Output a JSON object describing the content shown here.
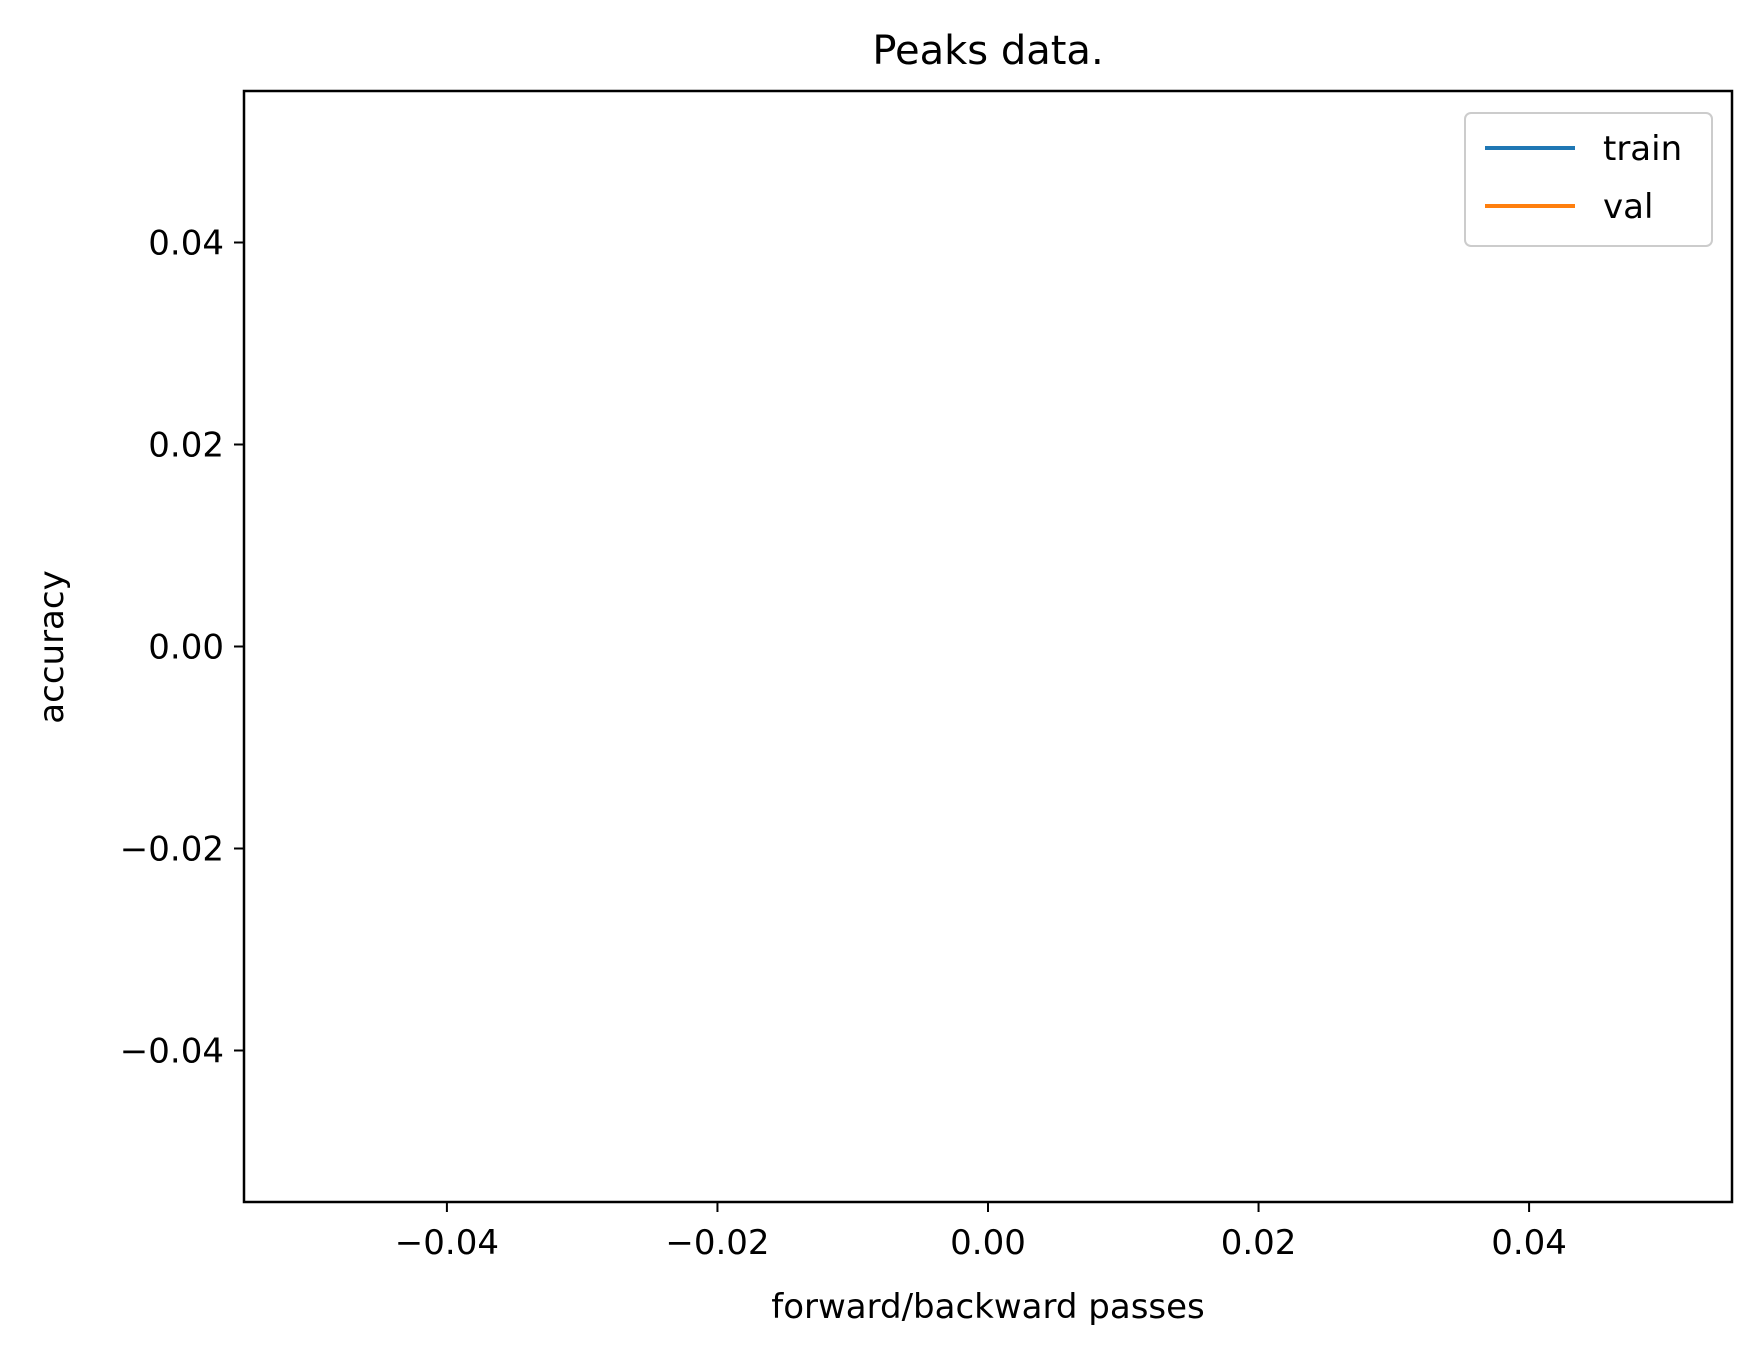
{
  "chart_data": {
    "type": "line",
    "title": "Peaks data.",
    "xlabel": "forward/backward passes",
    "ylabel": "accuracy",
    "xlim": [
      -0.055,
      0.055
    ],
    "ylim": [
      -0.055,
      0.055
    ],
    "xticks": [
      -0.04,
      -0.02,
      0.0,
      0.02,
      0.04
    ],
    "yticks": [
      -0.04,
      -0.02,
      0.0,
      0.02,
      0.04
    ],
    "xtick_labels": [
      "−0.04",
      "−0.02",
      "0.00",
      "0.02",
      "0.04"
    ],
    "ytick_labels": [
      "−0.04",
      "−0.02",
      "0.00",
      "0.02",
      "0.04"
    ],
    "grid": false,
    "legend_position": "top-right",
    "series": [
      {
        "name": "train",
        "color": "#1f77b4",
        "x": [],
        "y": []
      },
      {
        "name": "val",
        "color": "#ff7f0e",
        "x": [],
        "y": []
      }
    ]
  }
}
